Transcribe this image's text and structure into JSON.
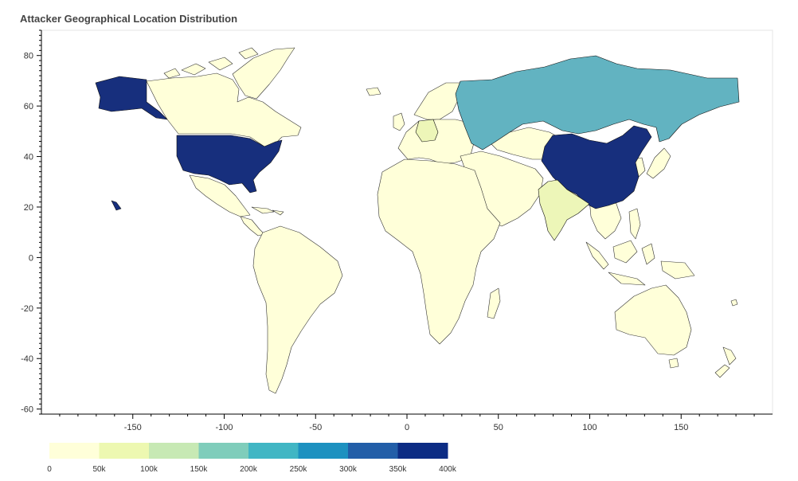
{
  "chart_data": {
    "type": "choropleth",
    "title": "Attacker Geographical Location Distribution",
    "xlabel": "",
    "ylabel": "",
    "xlim": [
      -200,
      200
    ],
    "ylim": [
      -62,
      90
    ],
    "x_ticks": [
      -150,
      -100,
      -50,
      0,
      50,
      100,
      150
    ],
    "y_ticks": [
      -60,
      -40,
      -20,
      0,
      20,
      40,
      60,
      80
    ],
    "grid": false,
    "colorbar": {
      "placement": "bottom-left",
      "ticks": [
        "0",
        "50k",
        "100k",
        "150k",
        "200k",
        "250k",
        "300k",
        "350k",
        "400k"
      ],
      "colors": [
        "#ffffd9",
        "#edf8b1",
        "#c7e9b4",
        "#7fcdbb",
        "#41b6c4",
        "#1d91c0",
        "#225ea8",
        "#0c2c84"
      ]
    },
    "regions": [
      {
        "name": "United States",
        "value_range": "350k-400k",
        "color": "#172f7d"
      },
      {
        "name": "China",
        "value_range": "350k-400k",
        "color": "#172f7d"
      },
      {
        "name": "Russia",
        "value_range": "200k-250k",
        "color": "#62b3c1"
      },
      {
        "name": "India",
        "value_range": "50k-100k",
        "color": "#edf6b8"
      },
      {
        "name": "Germany",
        "value_range": "50k-100k",
        "color": "#edf6b8"
      }
    ],
    "default_color": "#ffffd9"
  }
}
